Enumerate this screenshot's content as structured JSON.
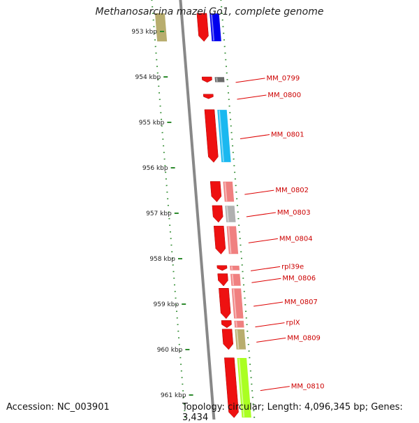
{
  "title": "Methanosarcina mazei Go1, complete genome",
  "accession": "Accession: NC_003901",
  "summary": "Topology: circular; Length: 4,096,345 bp; Genes: 3,434",
  "colors": {
    "tick": "#2e8b2e",
    "dots": "#2e8b2e",
    "backbone": "#888888",
    "gene_red": "#ee1111",
    "label": "#cc0000",
    "leader": "#dd0000"
  },
  "ticks": [
    {
      "label": "953 kbp",
      "kbp": 953
    },
    {
      "label": "954 kbp",
      "kbp": 954
    },
    {
      "label": "955 kbp",
      "kbp": 955
    },
    {
      "label": "956 kbp",
      "kbp": 956
    },
    {
      "label": "957 kbp",
      "kbp": 957
    },
    {
      "label": "958 kbp",
      "kbp": 958
    },
    {
      "label": "959 kbp",
      "kbp": 959
    },
    {
      "label": "960 kbp",
      "kbp": 960
    },
    {
      "label": "961 kbp",
      "kbp": 961
    }
  ],
  "genes": [
    {
      "label": "",
      "start_kbp": 952.6,
      "end_kbp": 953.22,
      "cog_color": "#0000ee",
      "extra_color": "#b8ad6e"
    },
    {
      "label": "MM_0799",
      "start_kbp": 954.0,
      "end_kbp": 954.12,
      "cog_color": "#6a6a6a"
    },
    {
      "label": "MM_0800",
      "start_kbp": 954.38,
      "end_kbp": 954.48,
      "cog_color": ""
    },
    {
      "label": "MM_0801",
      "start_kbp": 954.72,
      "end_kbp": 955.88,
      "cog_color": "#1ab8f0"
    },
    {
      "label": "MM_0802",
      "start_kbp": 956.3,
      "end_kbp": 956.75,
      "cog_color": "#f08080"
    },
    {
      "label": "MM_0803",
      "start_kbp": 956.83,
      "end_kbp": 957.2,
      "cog_color": "#b0b0b0"
    },
    {
      "label": "MM_0804",
      "start_kbp": 957.28,
      "end_kbp": 957.9,
      "cog_color": "#f08080"
    },
    {
      "label": "rpl39e",
      "start_kbp": 958.15,
      "end_kbp": 958.26,
      "cog_color": "#f08080"
    },
    {
      "label": "MM_0806",
      "start_kbp": 958.33,
      "end_kbp": 958.6,
      "cog_color": "#f08080"
    },
    {
      "label": "MM_0807",
      "start_kbp": 958.65,
      "end_kbp": 959.32,
      "cog_color": "#f08080"
    },
    {
      "label": "rplX",
      "start_kbp": 959.36,
      "end_kbp": 959.52,
      "cog_color": "#f08080"
    },
    {
      "label": "MM_0809",
      "start_kbp": 959.55,
      "end_kbp": 960.0,
      "cog_color": "#b8ad6e"
    },
    {
      "label": "MM_0810",
      "start_kbp": 960.18,
      "end_kbp": 961.5,
      "cog_color": "#aaff22"
    }
  ]
}
